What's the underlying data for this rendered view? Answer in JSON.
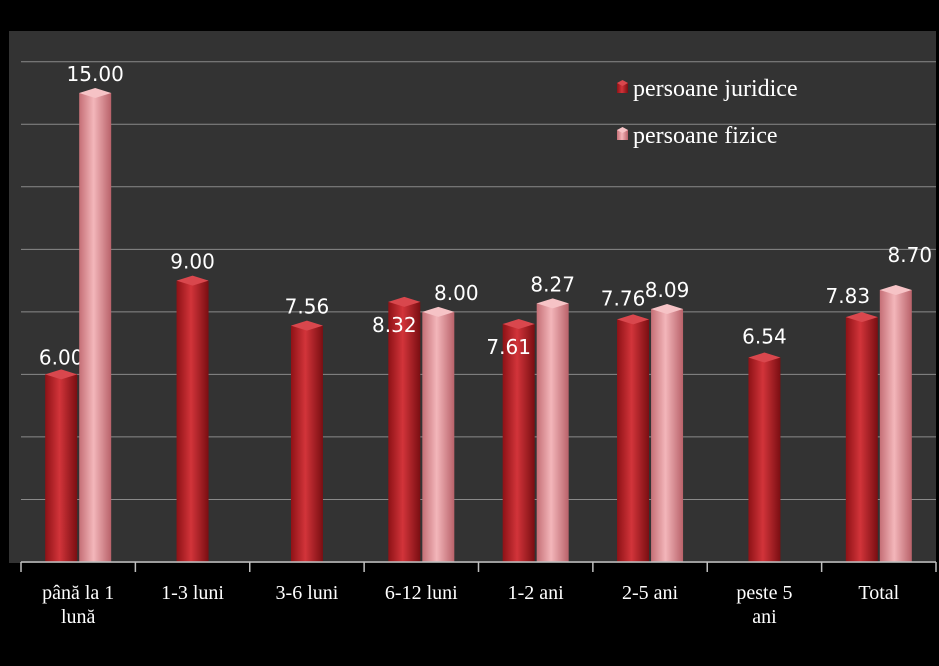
{
  "chart_data": {
    "type": "bar",
    "categories": [
      [
        "până la 1",
        "lună"
      ],
      [
        "1-3 luni"
      ],
      [
        "3-6 luni"
      ],
      [
        "6-12 luni"
      ],
      [
        "1-2 ani"
      ],
      [
        "2-5 ani"
      ],
      [
        "peste 5",
        "ani"
      ],
      [
        "Total"
      ]
    ],
    "series": [
      {
        "name": "persoane juridice",
        "color": "#c0272d",
        "values": [
          6.0,
          9.0,
          7.56,
          8.32,
          7.61,
          7.76,
          6.54,
          7.83
        ],
        "labels": [
          "6.00",
          "9.00",
          "7.56",
          "8.32",
          "7.61",
          "7.76",
          "6.54",
          "7.83"
        ]
      },
      {
        "name": "persoane fizice",
        "color": "#e8959b",
        "values": [
          15.0,
          null,
          null,
          8.0,
          8.27,
          8.09,
          null,
          8.7
        ],
        "labels": [
          "15.00",
          "",
          "",
          "8.00",
          "8.27",
          "8.09",
          "",
          "8.70"
        ]
      }
    ],
    "title": "",
    "xlabel": "",
    "ylabel": "",
    "ylim": [
      0,
      17
    ],
    "grid": true,
    "legend_position": "top-right",
    "background": "#333333"
  }
}
